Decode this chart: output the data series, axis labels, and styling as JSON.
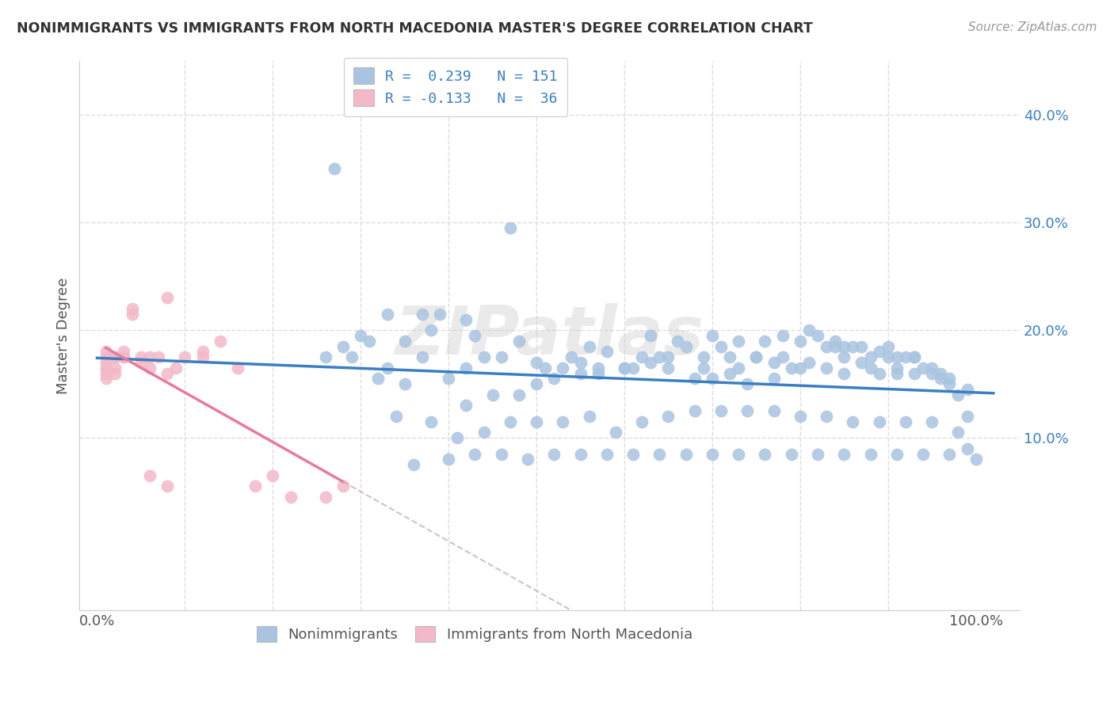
{
  "title": "NONIMMIGRANTS VS IMMIGRANTS FROM NORTH MACEDONIA MASTER'S DEGREE CORRELATION CHART",
  "source": "Source: ZipAtlas.com",
  "ylabel_label": "Master's Degree",
  "xlim": [
    -0.02,
    1.05
  ],
  "ylim": [
    -0.06,
    0.45
  ],
  "legend1_label": "R =  0.239   N = 151",
  "legend2_label": "R = -0.133   N =  36",
  "legend1_color": "#a8c4e0",
  "legend2_color": "#f4b8c8",
  "scatter_blue_color": "#a8c4e0",
  "scatter_pink_color": "#f4b8c8",
  "trend_blue_color": "#3a7fc1",
  "trend_pink_color": "#e87a9a",
  "trend_pink_dashed_color": "#ccb0bb",
  "watermark": "ZIPatlas",
  "background_color": "#ffffff",
  "grid_color": "#dddddd",
  "blue_x": [
    0.27,
    0.47,
    0.33,
    0.37,
    0.35,
    0.42,
    0.38,
    0.43,
    0.46,
    0.5,
    0.44,
    0.48,
    0.53,
    0.56,
    0.55,
    0.58,
    0.6,
    0.62,
    0.65,
    0.63,
    0.67,
    0.7,
    0.71,
    0.73,
    0.75,
    0.76,
    0.78,
    0.8,
    0.81,
    0.82,
    0.83,
    0.84,
    0.85,
    0.86,
    0.87,
    0.88,
    0.89,
    0.9,
    0.91,
    0.92,
    0.93,
    0.94,
    0.95,
    0.96,
    0.97,
    0.98,
    0.99,
    1.0,
    0.3,
    0.32,
    0.35,
    0.4,
    0.42,
    0.45,
    0.48,
    0.5,
    0.52,
    0.55,
    0.57,
    0.6,
    0.63,
    0.65,
    0.68,
    0.7,
    0.72,
    0.74,
    0.77,
    0.79,
    0.81,
    0.83,
    0.85,
    0.87,
    0.89,
    0.91,
    0.93,
    0.95,
    0.97,
    0.99,
    0.34,
    0.38,
    0.41,
    0.44,
    0.47,
    0.5,
    0.53,
    0.56,
    0.59,
    0.62,
    0.65,
    0.68,
    0.71,
    0.74,
    0.77,
    0.8,
    0.83,
    0.86,
    0.89,
    0.92,
    0.95,
    0.98,
    0.36,
    0.4,
    0.43,
    0.46,
    0.49,
    0.52,
    0.55,
    0.58,
    0.61,
    0.64,
    0.67,
    0.7,
    0.73,
    0.76,
    0.79,
    0.82,
    0.85,
    0.88,
    0.91,
    0.94,
    0.97,
    0.99,
    0.28,
    0.31,
    0.39,
    0.54,
    0.66,
    0.69,
    0.72,
    0.75,
    0.78,
    0.84,
    0.9,
    0.93,
    0.96,
    0.26,
    0.29,
    0.33,
    0.37,
    0.42,
    0.51,
    0.57,
    0.61,
    0.64,
    0.69,
    0.73,
    0.77,
    0.8,
    0.85,
    0.88,
    0.91
  ],
  "blue_y": [
    0.35,
    0.295,
    0.215,
    0.215,
    0.19,
    0.21,
    0.2,
    0.195,
    0.175,
    0.17,
    0.175,
    0.19,
    0.165,
    0.185,
    0.17,
    0.18,
    0.165,
    0.175,
    0.175,
    0.195,
    0.185,
    0.195,
    0.185,
    0.19,
    0.175,
    0.19,
    0.195,
    0.19,
    0.2,
    0.195,
    0.185,
    0.19,
    0.185,
    0.185,
    0.185,
    0.175,
    0.18,
    0.185,
    0.175,
    0.175,
    0.175,
    0.165,
    0.165,
    0.16,
    0.155,
    0.14,
    0.145,
    0.08,
    0.195,
    0.155,
    0.15,
    0.155,
    0.13,
    0.14,
    0.14,
    0.15,
    0.155,
    0.16,
    0.16,
    0.165,
    0.17,
    0.165,
    0.155,
    0.155,
    0.16,
    0.15,
    0.155,
    0.165,
    0.17,
    0.165,
    0.175,
    0.17,
    0.16,
    0.165,
    0.16,
    0.16,
    0.15,
    0.12,
    0.12,
    0.115,
    0.1,
    0.105,
    0.115,
    0.115,
    0.115,
    0.12,
    0.105,
    0.115,
    0.12,
    0.125,
    0.125,
    0.125,
    0.125,
    0.12,
    0.12,
    0.115,
    0.115,
    0.115,
    0.115,
    0.105,
    0.075,
    0.08,
    0.085,
    0.085,
    0.08,
    0.085,
    0.085,
    0.085,
    0.085,
    0.085,
    0.085,
    0.085,
    0.085,
    0.085,
    0.085,
    0.085,
    0.085,
    0.085,
    0.085,
    0.085,
    0.085,
    0.09,
    0.185,
    0.19,
    0.215,
    0.175,
    0.19,
    0.175,
    0.175,
    0.175,
    0.175,
    0.185,
    0.175,
    0.175,
    0.155,
    0.175,
    0.175,
    0.165,
    0.175,
    0.165,
    0.165,
    0.165,
    0.165,
    0.175,
    0.165,
    0.165,
    0.17,
    0.165,
    0.16,
    0.165,
    0.16
  ],
  "pink_x": [
    0.01,
    0.01,
    0.01,
    0.01,
    0.01,
    0.01,
    0.01,
    0.02,
    0.02,
    0.02,
    0.02,
    0.03,
    0.03,
    0.03,
    0.04,
    0.04,
    0.05,
    0.05,
    0.06,
    0.06,
    0.07,
    0.08,
    0.08,
    0.09,
    0.1,
    0.12,
    0.12,
    0.14,
    0.16,
    0.18,
    0.2,
    0.22,
    0.26,
    0.28,
    0.06,
    0.08
  ],
  "pink_y": [
    0.17,
    0.175,
    0.18,
    0.155,
    0.165,
    0.165,
    0.16,
    0.175,
    0.175,
    0.165,
    0.16,
    0.18,
    0.175,
    0.175,
    0.22,
    0.215,
    0.175,
    0.17,
    0.175,
    0.165,
    0.175,
    0.16,
    0.23,
    0.165,
    0.175,
    0.18,
    0.175,
    0.19,
    0.165,
    0.055,
    0.065,
    0.045,
    0.045,
    0.055,
    0.065,
    0.055
  ]
}
